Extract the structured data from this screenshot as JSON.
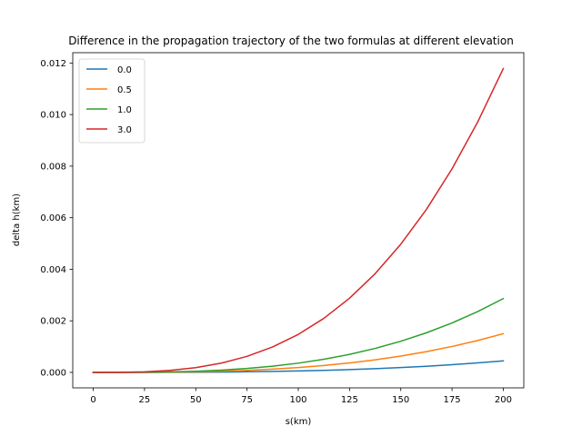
{
  "chart_data": {
    "type": "line",
    "title": "Difference in the propagation trajectory of the two formulas at different elevation",
    "xlabel": "s(km)",
    "ylabel": "delta h(km)",
    "xlim": [
      -10,
      210
    ],
    "ylim": [
      -0.0006,
      0.0124
    ],
    "xticks": [
      0,
      25,
      50,
      75,
      100,
      125,
      150,
      175,
      200
    ],
    "xtick_labels": [
      "0",
      "25",
      "50",
      "75",
      "100",
      "125",
      "150",
      "175",
      "200"
    ],
    "yticks": [
      0.0,
      0.002,
      0.004,
      0.006,
      0.008,
      0.01,
      0.012
    ],
    "ytick_labels": [
      "0.000",
      "0.002",
      "0.004",
      "0.006",
      "0.008",
      "0.010",
      "0.012"
    ],
    "grid": false,
    "legend_position": "upper left",
    "x": [
      0,
      12.5,
      25,
      37.5,
      50,
      62.5,
      75,
      87.5,
      100,
      112.5,
      125,
      137.5,
      150,
      162.5,
      175,
      187.5,
      200
    ],
    "series": [
      {
        "name": "0.0",
        "color": "#1f77b4",
        "values": [
          0,
          1e-07,
          9e-07,
          3e-06,
          7e-06,
          1.36e-05,
          2.35e-05,
          3.73e-05,
          5.57e-05,
          7.93e-05,
          0.0001088,
          0.0001448,
          0.000188,
          0.000239,
          0.0002985,
          0.0003671,
          0.0004456
        ]
      },
      {
        "name": "0.5",
        "color": "#ff7f0e",
        "values": [
          0,
          4e-07,
          2.9e-06,
          9.9e-06,
          2.34e-05,
          4.58e-05,
          7.91e-05,
          0.0001257,
          0.0001875,
          0.000267,
          0.0003662,
          0.0004875,
          0.0006328,
          0.0008046,
          0.0010049,
          0.0012359,
          0.0015
        ]
      },
      {
        "name": "1.0",
        "color": "#2ca02c",
        "values": [
          0,
          7e-07,
          5.6e-06,
          1.89e-05,
          4.47e-05,
          8.74e-05,
          0.000151,
          0.0002398,
          0.0003578,
          0.0005095,
          0.0006989,
          0.0009303,
          0.0012077,
          0.0015355,
          0.0019178,
          0.0023588,
          0.0028627
        ]
      },
      {
        "name": "3.0",
        "color": "#d62728",
        "values": [
          0,
          2.9e-06,
          2.3e-05,
          7.77e-05,
          0.0001841,
          0.0003596,
          0.0006214,
          0.0009868,
          0.001473,
          0.0020973,
          0.002877,
          0.0038293,
          0.0049714,
          0.0063206,
          0.0078942,
          0.0097094,
          0.0117834
        ]
      }
    ]
  }
}
